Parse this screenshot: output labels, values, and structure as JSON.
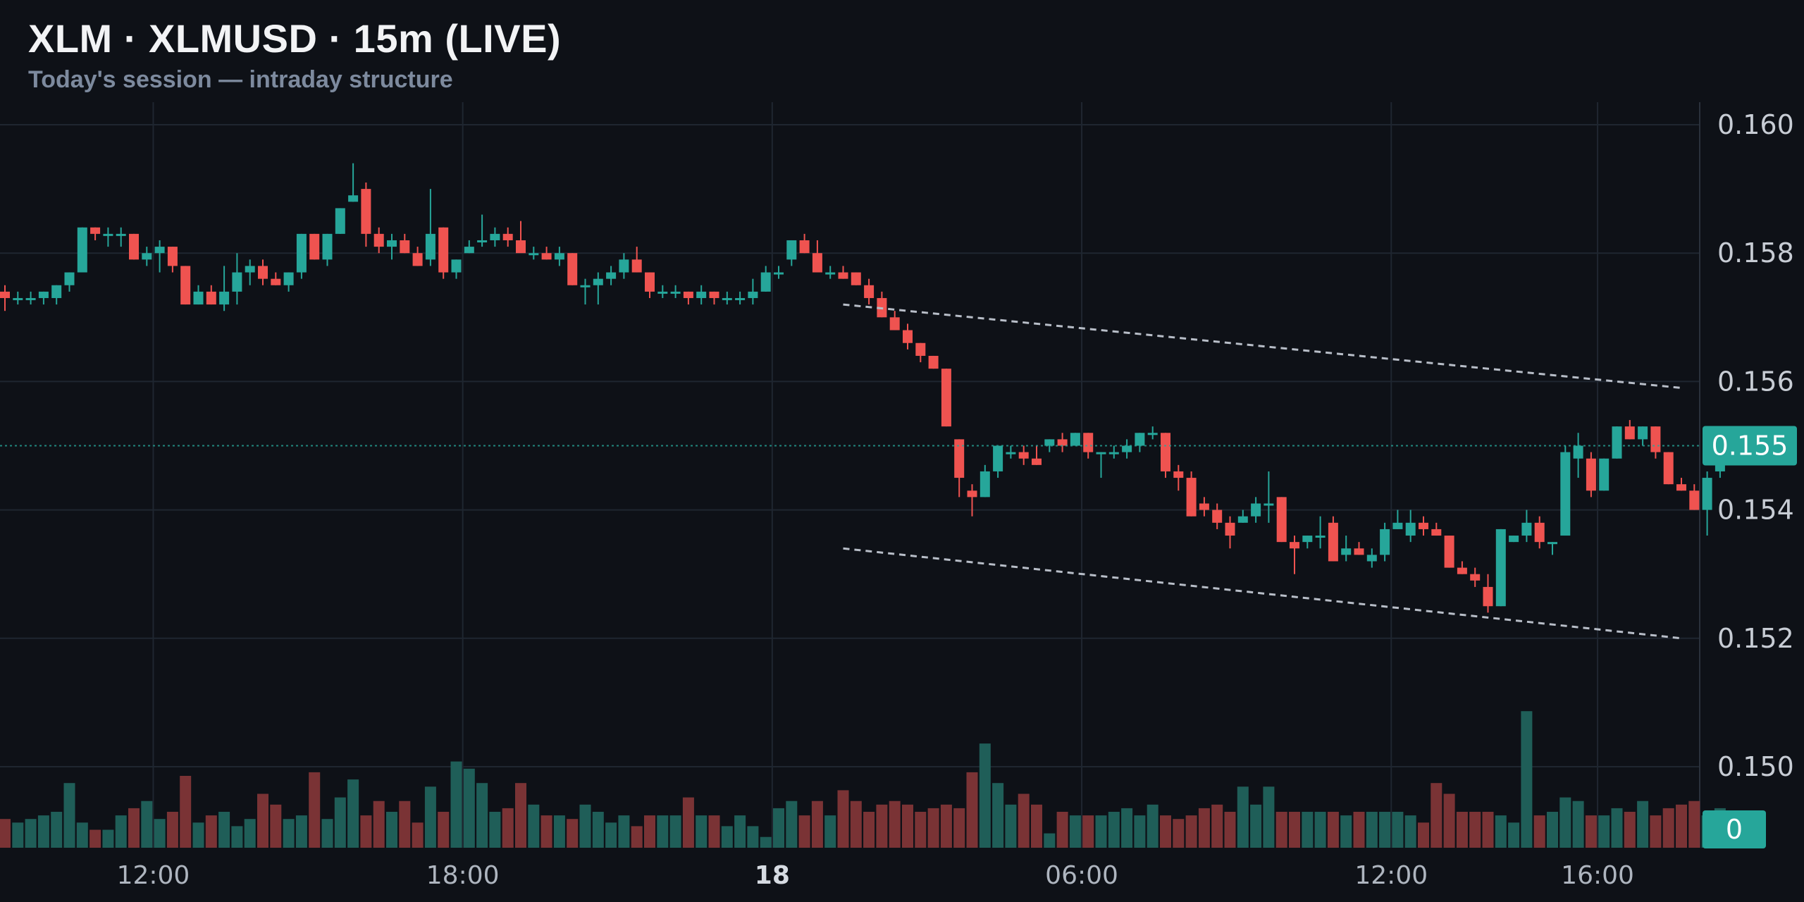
{
  "header": {
    "title": "XLM · XLMUSD · 15m (LIVE)",
    "subtitle": "Today's session — intraday structure"
  },
  "colors": {
    "background": "#0e1117",
    "grid": "#1f2630",
    "up": "#26a69a",
    "down": "#ef5350",
    "volume_up": "#1f5e58",
    "volume_down": "#7a3335",
    "last_price_tag": "#26a69a",
    "trendline": "#b8bec8"
  },
  "chart_data": {
    "type": "candlestick",
    "symbol": "XLMUSD",
    "interval": "15m",
    "ylim": [
      0.1488,
      0.1605
    ],
    "y_ticks": [
      "0.160",
      "0.158",
      "0.156",
      "0.154",
      "0.152",
      "0.150"
    ],
    "x_ticks": [
      {
        "label": "12:00",
        "index": 11.5,
        "bold": false
      },
      {
        "label": "18:00",
        "index": 35.5,
        "bold": false
      },
      {
        "label": "18",
        "index": 59.5,
        "bold": true
      },
      {
        "label": "06:00",
        "index": 83.5,
        "bold": false
      },
      {
        "label": "12:00",
        "index": 107.5,
        "bold": false
      },
      {
        "label": "16:00",
        "index": 123.5,
        "bold": false
      }
    ],
    "last_price": "0.155",
    "last_price_value": 0.155,
    "volume_tag": "0",
    "candles": [
      [
        0.1574,
        0.1575,
        0.1571,
        0.1573
      ],
      [
        0.1573,
        0.1574,
        0.1572,
        0.1573
      ],
      [
        0.1573,
        0.1574,
        0.1572,
        0.1573
      ],
      [
        0.1573,
        0.1574,
        0.1572,
        0.1574
      ],
      [
        0.1573,
        0.1575,
        0.1572,
        0.1575
      ],
      [
        0.1575,
        0.1577,
        0.1574,
        0.1577
      ],
      [
        0.1577,
        0.1584,
        0.1577,
        0.1584
      ],
      [
        0.1584,
        0.1584,
        0.1582,
        0.1583
      ],
      [
        0.1583,
        0.1584,
        0.1581,
        0.1583
      ],
      [
        0.1583,
        0.1584,
        0.1581,
        0.1583
      ],
      [
        0.1583,
        0.1583,
        0.1579,
        0.1579
      ],
      [
        0.1579,
        0.1581,
        0.1578,
        0.158
      ],
      [
        0.158,
        0.1582,
        0.1577,
        0.1581
      ],
      [
        0.1581,
        0.1581,
        0.1577,
        0.1578
      ],
      [
        0.1578,
        0.1578,
        0.1572,
        0.1572
      ],
      [
        0.1572,
        0.1575,
        0.1572,
        0.1574
      ],
      [
        0.1574,
        0.1575,
        0.1572,
        0.1572
      ],
      [
        0.1572,
        0.1578,
        0.1571,
        0.1574
      ],
      [
        0.1574,
        0.158,
        0.1572,
        0.1577
      ],
      [
        0.1577,
        0.1579,
        0.1575,
        0.1578
      ],
      [
        0.1578,
        0.1579,
        0.1575,
        0.1576
      ],
      [
        0.1576,
        0.1577,
        0.1575,
        0.1575
      ],
      [
        0.1575,
        0.1577,
        0.1574,
        0.1577
      ],
      [
        0.1577,
        0.1583,
        0.1576,
        0.1583
      ],
      [
        0.1583,
        0.1583,
        0.1579,
        0.1579
      ],
      [
        0.1579,
        0.1583,
        0.1578,
        0.1583
      ],
      [
        0.1583,
        0.1587,
        0.1583,
        0.1587
      ],
      [
        0.1588,
        0.1594,
        0.1588,
        0.1589
      ],
      [
        0.159,
        0.1591,
        0.1581,
        0.1583
      ],
      [
        0.1583,
        0.1584,
        0.158,
        0.1581
      ],
      [
        0.1581,
        0.1583,
        0.1579,
        0.1582
      ],
      [
        0.1582,
        0.1583,
        0.158,
        0.158
      ],
      [
        0.158,
        0.1581,
        0.1578,
        0.1578
      ],
      [
        0.1579,
        0.159,
        0.1578,
        0.1583
      ],
      [
        0.1584,
        0.1584,
        0.1576,
        0.1577
      ],
      [
        0.1577,
        0.1579,
        0.1576,
        0.1579
      ],
      [
        0.158,
        0.1582,
        0.158,
        0.1581
      ],
      [
        0.1582,
        0.1586,
        0.1581,
        0.1582
      ],
      [
        0.1582,
        0.1584,
        0.1581,
        0.1583
      ],
      [
        0.1583,
        0.1584,
        0.1581,
        0.1582
      ],
      [
        0.1582,
        0.1585,
        0.1581,
        0.158
      ],
      [
        0.158,
        0.1581,
        0.1579,
        0.158
      ],
      [
        0.158,
        0.1581,
        0.1579,
        0.1579
      ],
      [
        0.1579,
        0.1581,
        0.1578,
        0.158
      ],
      [
        0.158,
        0.158,
        0.1575,
        0.1575
      ],
      [
        0.1575,
        0.1576,
        0.1572,
        0.1575
      ],
      [
        0.1575,
        0.1577,
        0.1572,
        0.1576
      ],
      [
        0.1576,
        0.1578,
        0.1575,
        0.1577
      ],
      [
        0.1577,
        0.158,
        0.1576,
        0.1579
      ],
      [
        0.1579,
        0.1581,
        0.1577,
        0.1577
      ],
      [
        0.1577,
        0.1577,
        0.1573,
        0.1574
      ],
      [
        0.1574,
        0.1575,
        0.1573,
        0.1574
      ],
      [
        0.1574,
        0.1575,
        0.1573,
        0.1574
      ],
      [
        0.1574,
        0.1574,
        0.1572,
        0.1573
      ],
      [
        0.1573,
        0.1575,
        0.1572,
        0.1574
      ],
      [
        0.1574,
        0.1574,
        0.1572,
        0.1573
      ],
      [
        0.1573,
        0.1574,
        0.1572,
        0.1573
      ],
      [
        0.1573,
        0.1574,
        0.1572,
        0.1573
      ],
      [
        0.1573,
        0.1576,
        0.1572,
        0.1574
      ],
      [
        0.1574,
        0.1578,
        0.1574,
        0.1577
      ],
      [
        0.1577,
        0.1578,
        0.1576,
        0.1577
      ],
      [
        0.1579,
        0.1582,
        0.1578,
        0.1582
      ],
      [
        0.1582,
        0.1583,
        0.158,
        0.158
      ],
      [
        0.158,
        0.1582,
        0.1578,
        0.1577
      ],
      [
        0.1577,
        0.1578,
        0.1576,
        0.1577
      ],
      [
        0.1577,
        0.1578,
        0.1576,
        0.1576
      ],
      [
        0.1577,
        0.1577,
        0.1575,
        0.1575
      ],
      [
        0.1575,
        0.1576,
        0.1572,
        0.1573
      ],
      [
        0.1573,
        0.1574,
        0.157,
        0.157
      ],
      [
        0.157,
        0.1571,
        0.1568,
        0.1568
      ],
      [
        0.1568,
        0.1569,
        0.1565,
        0.1566
      ],
      [
        0.1566,
        0.1566,
        0.1563,
        0.1564
      ],
      [
        0.1564,
        0.1564,
        0.1562,
        0.1562
      ],
      [
        0.1562,
        0.1562,
        0.1553,
        0.1553
      ],
      [
        0.1551,
        0.1551,
        0.1542,
        0.1545
      ],
      [
        0.1543,
        0.1544,
        0.1539,
        0.1542
      ],
      [
        0.1542,
        0.1547,
        0.1542,
        0.1546
      ],
      [
        0.1546,
        0.155,
        0.1545,
        0.155
      ],
      [
        0.1549,
        0.155,
        0.1548,
        0.1549
      ],
      [
        0.1549,
        0.155,
        0.1547,
        0.1548
      ],
      [
        0.1548,
        0.155,
        0.1547,
        0.1547
      ],
      [
        0.155,
        0.1551,
        0.1549,
        0.1551
      ],
      [
        0.1551,
        0.1552,
        0.1549,
        0.155
      ],
      [
        0.155,
        0.1552,
        0.155,
        0.1552
      ],
      [
        0.1552,
        0.1552,
        0.1548,
        0.1549
      ],
      [
        0.1549,
        0.1549,
        0.1545,
        0.1549
      ],
      [
        0.1549,
        0.155,
        0.1548,
        0.1549
      ],
      [
        0.1549,
        0.1551,
        0.1548,
        0.155
      ],
      [
        0.155,
        0.1552,
        0.1549,
        0.1552
      ],
      [
        0.1552,
        0.1553,
        0.1551,
        0.1552
      ],
      [
        0.1552,
        0.1552,
        0.1545,
        0.1546
      ],
      [
        0.1546,
        0.1547,
        0.1543,
        0.1545
      ],
      [
        0.1545,
        0.1546,
        0.1539,
        0.1539
      ],
      [
        0.1541,
        0.1542,
        0.1539,
        0.154
      ],
      [
        0.154,
        0.1541,
        0.1537,
        0.1538
      ],
      [
        0.1538,
        0.1539,
        0.1534,
        0.1536
      ],
      [
        0.1538,
        0.154,
        0.1538,
        0.1539
      ],
      [
        0.1539,
        0.1542,
        0.1538,
        0.1541
      ],
      [
        0.1541,
        0.1546,
        0.1538,
        0.1541
      ],
      [
        0.1542,
        0.1542,
        0.1535,
        0.1535
      ],
      [
        0.1535,
        0.1536,
        0.153,
        0.1534
      ],
      [
        0.1535,
        0.1536,
        0.1534,
        0.1536
      ],
      [
        0.1536,
        0.1539,
        0.1534,
        0.1536
      ],
      [
        0.1538,
        0.1539,
        0.1532,
        0.1532
      ],
      [
        0.1533,
        0.1536,
        0.1532,
        0.1534
      ],
      [
        0.1534,
        0.1535,
        0.1533,
        0.1533
      ],
      [
        0.1532,
        0.1534,
        0.1531,
        0.1533
      ],
      [
        0.1533,
        0.1538,
        0.1532,
        0.1537
      ],
      [
        0.1537,
        0.154,
        0.1537,
        0.1538
      ],
      [
        0.1536,
        0.154,
        0.1535,
        0.1538
      ],
      [
        0.1538,
        0.1539,
        0.1536,
        0.1537
      ],
      [
        0.1537,
        0.1538,
        0.1536,
        0.1536
      ],
      [
        0.1536,
        0.1536,
        0.1531,
        0.1531
      ],
      [
        0.1531,
        0.1532,
        0.153,
        0.153
      ],
      [
        0.153,
        0.1531,
        0.1528,
        0.1529
      ],
      [
        0.1528,
        0.153,
        0.1524,
        0.1525
      ],
      [
        0.1525,
        0.1537,
        0.1525,
        0.1537
      ],
      [
        0.1535,
        0.1536,
        0.1535,
        0.1536
      ],
      [
        0.1536,
        0.154,
        0.1535,
        0.1538
      ],
      [
        0.1538,
        0.1539,
        0.1534,
        0.1535
      ],
      [
        0.1535,
        0.1535,
        0.1533,
        0.1535
      ],
      [
        0.1536,
        0.155,
        0.1536,
        0.1549
      ],
      [
        0.1548,
        0.1552,
        0.1545,
        0.155
      ],
      [
        0.1548,
        0.1549,
        0.1542,
        0.1543
      ],
      [
        0.1543,
        0.1548,
        0.1543,
        0.1548
      ],
      [
        0.1548,
        0.1553,
        0.1548,
        0.1553
      ],
      [
        0.1553,
        0.1554,
        0.1551,
        0.1551
      ],
      [
        0.1551,
        0.1553,
        0.155,
        0.1553
      ],
      [
        0.1553,
        0.1553,
        0.1548,
        0.1549
      ],
      [
        0.1549,
        0.1549,
        0.1544,
        0.1544
      ],
      [
        0.1544,
        0.1545,
        0.1543,
        0.1543
      ],
      [
        0.1543,
        0.1544,
        0.154,
        0.154
      ],
      [
        0.154,
        0.1546,
        0.1536,
        0.1545
      ],
      [
        0.1546,
        0.155,
        0.1545,
        0.1549
      ]
    ],
    "volumes": [
      8,
      7,
      8,
      9,
      10,
      18,
      7,
      5,
      5,
      9,
      11,
      13,
      8,
      10,
      20,
      7,
      9,
      10,
      6,
      8,
      15,
      12,
      8,
      9,
      21,
      8,
      14,
      19,
      9,
      13,
      10,
      13,
      7,
      17,
      10,
      24,
      22,
      18,
      10,
      11,
      18,
      12,
      9,
      9,
      8,
      12,
      10,
      7,
      9,
      6,
      9,
      9,
      9,
      14,
      9,
      9,
      6,
      9,
      6,
      3,
      11,
      13,
      9,
      13,
      9,
      16,
      13,
      10,
      12,
      13,
      12,
      10,
      11,
      12,
      11,
      21,
      29,
      18,
      12,
      15,
      12,
      4,
      10,
      9,
      9,
      9,
      10,
      11,
      9,
      12,
      9,
      8,
      9,
      11,
      12,
      10,
      17,
      12,
      17,
      10,
      10,
      10,
      10,
      10,
      9,
      10,
      10,
      10,
      10,
      9,
      7,
      18,
      15,
      10,
      10,
      10,
      9,
      7,
      38,
      9,
      10,
      14,
      13,
      9,
      9,
      11,
      10,
      13,
      9,
      11,
      12,
      13,
      9,
      11
    ],
    "volume_max": 40,
    "trendlines": [
      {
        "name": "upper",
        "x1": 65,
        "y1": 0.1572,
        "x2": 130,
        "y2": 0.1559
      },
      {
        "name": "lower",
        "x1": 65,
        "y1": 0.1534,
        "x2": 130,
        "y2": 0.152
      }
    ]
  }
}
